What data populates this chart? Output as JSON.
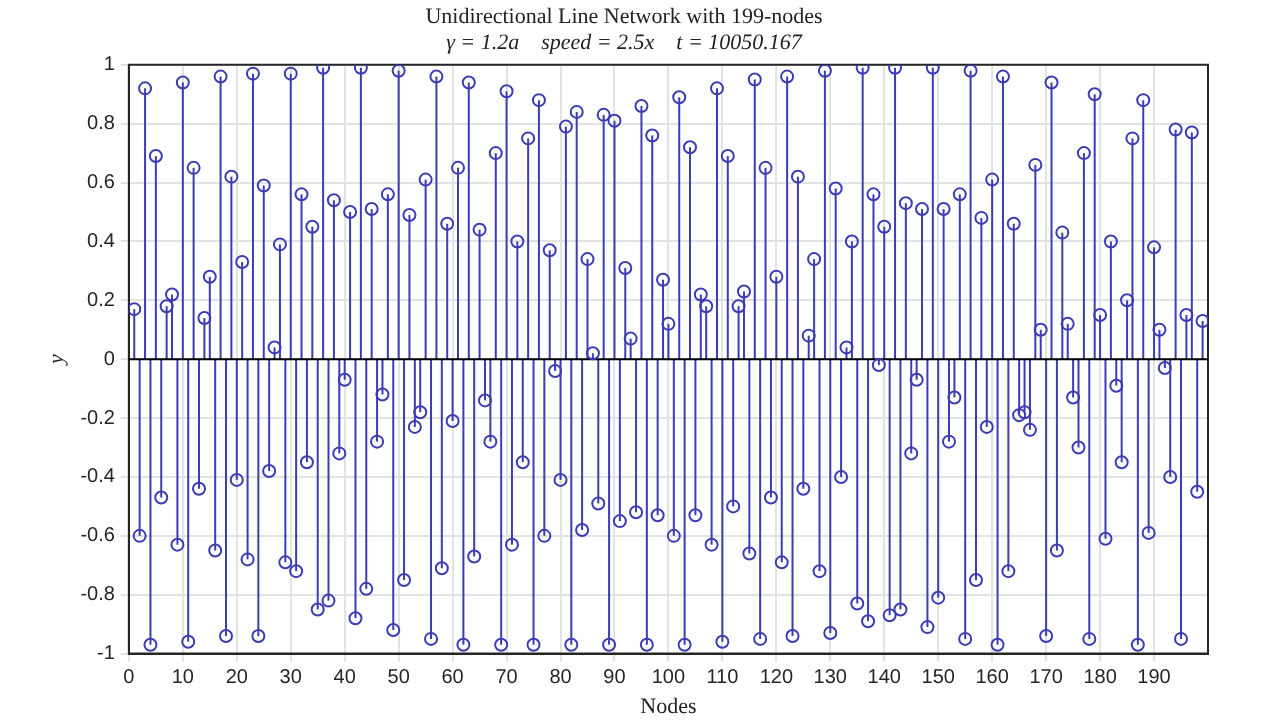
{
  "chart_data": {
    "type": "lollipop",
    "title": "Unidirectional Line Network with 199-nodes",
    "subtitle": "γ = 1.2a    speed = 2.5x    t = 10050.167",
    "xlabel": "Nodes",
    "ylabel": "y",
    "x": [
      1,
      2,
      3,
      4,
      5,
      6,
      7,
      8,
      9,
      10,
      11,
      12,
      13,
      14,
      15,
      16,
      17,
      18,
      19,
      20,
      21,
      22,
      23,
      24,
      25,
      26,
      27,
      28,
      29,
      30,
      31,
      32,
      33,
      34,
      35,
      36,
      37,
      38,
      39,
      40,
      41,
      42,
      43,
      44,
      45,
      46,
      47,
      48,
      49,
      50,
      51,
      52,
      53,
      54,
      55,
      56,
      57,
      58,
      59,
      60,
      61,
      62,
      63,
      64,
      65,
      66,
      67,
      68,
      69,
      70,
      71,
      72,
      73,
      74,
      75,
      76,
      77,
      78,
      79,
      80,
      81,
      82,
      83,
      84,
      85,
      86,
      87,
      88,
      89,
      90,
      91,
      92,
      93,
      94,
      95,
      96,
      97,
      98,
      99,
      100,
      101,
      102,
      103,
      104,
      105,
      106,
      107,
      108,
      109,
      110,
      111,
      112,
      113,
      114,
      115,
      116,
      117,
      118,
      119,
      120,
      121,
      122,
      123,
      124,
      125,
      126,
      127,
      128,
      129,
      130,
      131,
      132,
      133,
      134,
      135,
      136,
      137,
      138,
      139,
      140,
      141,
      142,
      143,
      144,
      145,
      146,
      147,
      148,
      149,
      150,
      151,
      152,
      153,
      154,
      155,
      156,
      157,
      158,
      159,
      160,
      161,
      162,
      163,
      164,
      165,
      166,
      167,
      168,
      169,
      170,
      171,
      172,
      173,
      174,
      175,
      176,
      177,
      178,
      179,
      180,
      181,
      182,
      183,
      184,
      185,
      186,
      187,
      188,
      189,
      190,
      191,
      192,
      193,
      194,
      195,
      196,
      197,
      198,
      199
    ],
    "series": [
      {
        "color": "#3c3cb4",
        "values": [
          0.17,
          -0.6,
          0.92,
          -0.97,
          0.69,
          -0.47,
          0.18,
          0.22,
          -0.63,
          0.94,
          -0.96,
          0.65,
          -0.44,
          0.14,
          0.28,
          -0.65,
          0.96,
          -0.94,
          0.62,
          -0.41,
          0.33,
          -0.68,
          0.97,
          -0.94,
          0.59,
          -0.38,
          0.04,
          0.39,
          -0.69,
          0.97,
          -0.72,
          0.56,
          -0.35,
          0.45,
          -0.85,
          0.99,
          -0.82,
          0.54,
          -0.32,
          -0.07,
          0.5,
          -0.88,
          0.99,
          -0.78,
          0.51,
          -0.28,
          -0.12,
          0.56,
          -0.92,
          0.98,
          -0.75,
          0.49,
          -0.23,
          -0.18,
          0.61,
          -0.95,
          0.96,
          -0.71,
          0.46,
          -0.21,
          0.65,
          -0.97,
          0.94,
          -0.67,
          0.44,
          -0.14,
          -0.28,
          0.7,
          -0.97,
          0.91,
          -0.63,
          0.4,
          -0.35,
          0.75,
          -0.97,
          0.88,
          -0.6,
          0.37,
          -0.04,
          -0.41,
          0.79,
          -0.97,
          0.84,
          -0.58,
          0.34,
          0.02,
          -0.49,
          0.83,
          -0.97,
          0.81,
          -0.55,
          0.31,
          0.07,
          -0.52,
          0.86,
          -0.97,
          0.76,
          -0.53,
          0.27,
          0.12,
          -0.6,
          0.89,
          -0.97,
          0.72,
          -0.53,
          0.22,
          0.18,
          -0.63,
          0.92,
          -0.96,
          0.69,
          -0.5,
          0.18,
          0.23,
          -0.66,
          0.95,
          -0.95,
          0.65,
          -0.47,
          0.28,
          -0.69,
          0.96,
          -0.94,
          0.62,
          -0.44,
          0.08,
          0.34,
          -0.72,
          0.98,
          -0.93,
          0.58,
          -0.4,
          0.04,
          0.4,
          -0.83,
          0.99,
          -0.89,
          0.56,
          -0.02,
          0.45,
          -0.87,
          0.99,
          -0.85,
          0.53,
          -0.32,
          -0.07,
          0.51,
          -0.91,
          0.99,
          -0.81,
          0.51,
          -0.28,
          -0.13,
          0.56,
          -0.95,
          0.98,
          -0.75,
          0.48,
          -0.23,
          0.61,
          -0.97,
          0.96,
          -0.72,
          0.46,
          -0.19,
          -0.18,
          -0.24,
          0.66,
          0.1,
          -0.94,
          0.94,
          -0.65,
          0.43,
          0.12,
          -0.13,
          -0.3,
          0.7,
          -0.95,
          0.9,
          0.15,
          -0.61,
          0.4,
          -0.09,
          -0.35,
          0.2,
          0.75,
          -0.97,
          0.88,
          -0.59,
          0.38,
          0.1,
          -0.03,
          -0.4,
          0.78,
          -0.95,
          0.15,
          0.77,
          -0.45,
          0.13
        ]
      }
    ],
    "xlim": [
      0,
      200
    ],
    "xticks": [
      0,
      10,
      20,
      30,
      40,
      50,
      60,
      70,
      80,
      90,
      100,
      110,
      120,
      130,
      140,
      150,
      160,
      170,
      180,
      190
    ],
    "ylim": [
      -1,
      1
    ],
    "yticks": [
      -1,
      -0.8,
      -0.6,
      -0.4,
      -0.2,
      0,
      0.2,
      0.4,
      0.6,
      0.8,
      1
    ],
    "grid": true,
    "marker": "circle"
  }
}
